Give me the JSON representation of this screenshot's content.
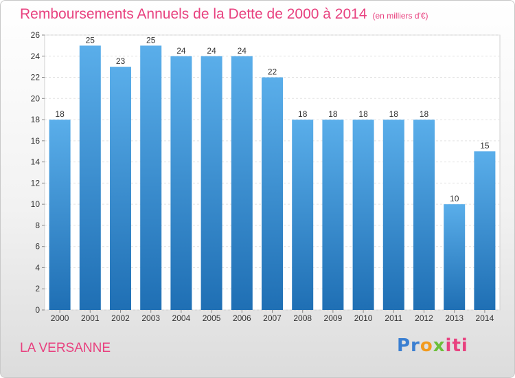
{
  "title": "Remboursements Annuels de la Dette de 2000 à 2014",
  "unit": "(en milliers d'€)",
  "location": "LA VERSANNE",
  "logo": {
    "part1": "Pr",
    "part2": "o",
    "part3": "x",
    "part4": "iti"
  },
  "colors": {
    "bar_top": "#5aaeea",
    "bar_bottom": "#1f6fb4",
    "title": "#e8417f"
  },
  "chart_data": {
    "type": "bar",
    "title": "Remboursements Annuels de la Dette de 2000 à 2014",
    "xlabel": "",
    "ylabel": "",
    "categories": [
      "2000",
      "2001",
      "2002",
      "2003",
      "2004",
      "2005",
      "2006",
      "2007",
      "2008",
      "2009",
      "2010",
      "2011",
      "2012",
      "2013",
      "2014"
    ],
    "values": [
      18,
      25,
      23,
      25,
      24,
      24,
      24,
      22,
      18,
      18,
      18,
      18,
      18,
      10,
      15
    ],
    "ylim": [
      0,
      26
    ],
    "yticks": [
      0,
      2,
      4,
      6,
      8,
      10,
      12,
      14,
      16,
      18,
      20,
      22,
      24,
      26
    ],
    "grid": true,
    "data_labels": true
  }
}
